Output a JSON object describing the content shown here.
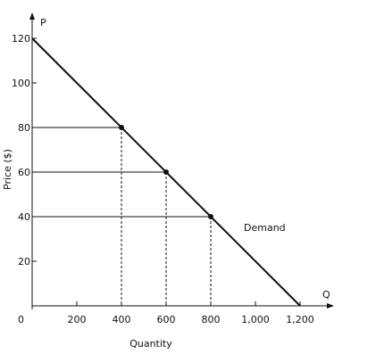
{
  "chart_data": {
    "type": "line",
    "title": "",
    "xlabel": "Quantity",
    "ylabel": "Price ($)",
    "x_axis_letter": "Q",
    "y_axis_letter": "P",
    "origin_label": "0",
    "xlim": [
      0,
      1200
    ],
    "ylim": [
      0,
      120
    ],
    "x_ticks": [
      200,
      400,
      600,
      800,
      1000,
      1200
    ],
    "x_tick_labels": [
      "200",
      "400",
      "600",
      "800",
      "1,000",
      "1,200"
    ],
    "y_ticks": [
      20,
      40,
      60,
      80,
      100,
      120
    ],
    "y_tick_labels": [
      "20",
      "40",
      "60",
      "80",
      "100",
      "120"
    ],
    "series": [
      {
        "name": "Demand",
        "x": [
          0,
          1200
        ],
        "y": [
          120,
          0
        ]
      }
    ],
    "marked_points": [
      {
        "x": 400,
        "y": 80
      },
      {
        "x": 600,
        "y": 60
      },
      {
        "x": 800,
        "y": 40
      }
    ],
    "grid": false,
    "colors": {
      "line": "#111111",
      "guide": "#111111"
    }
  }
}
